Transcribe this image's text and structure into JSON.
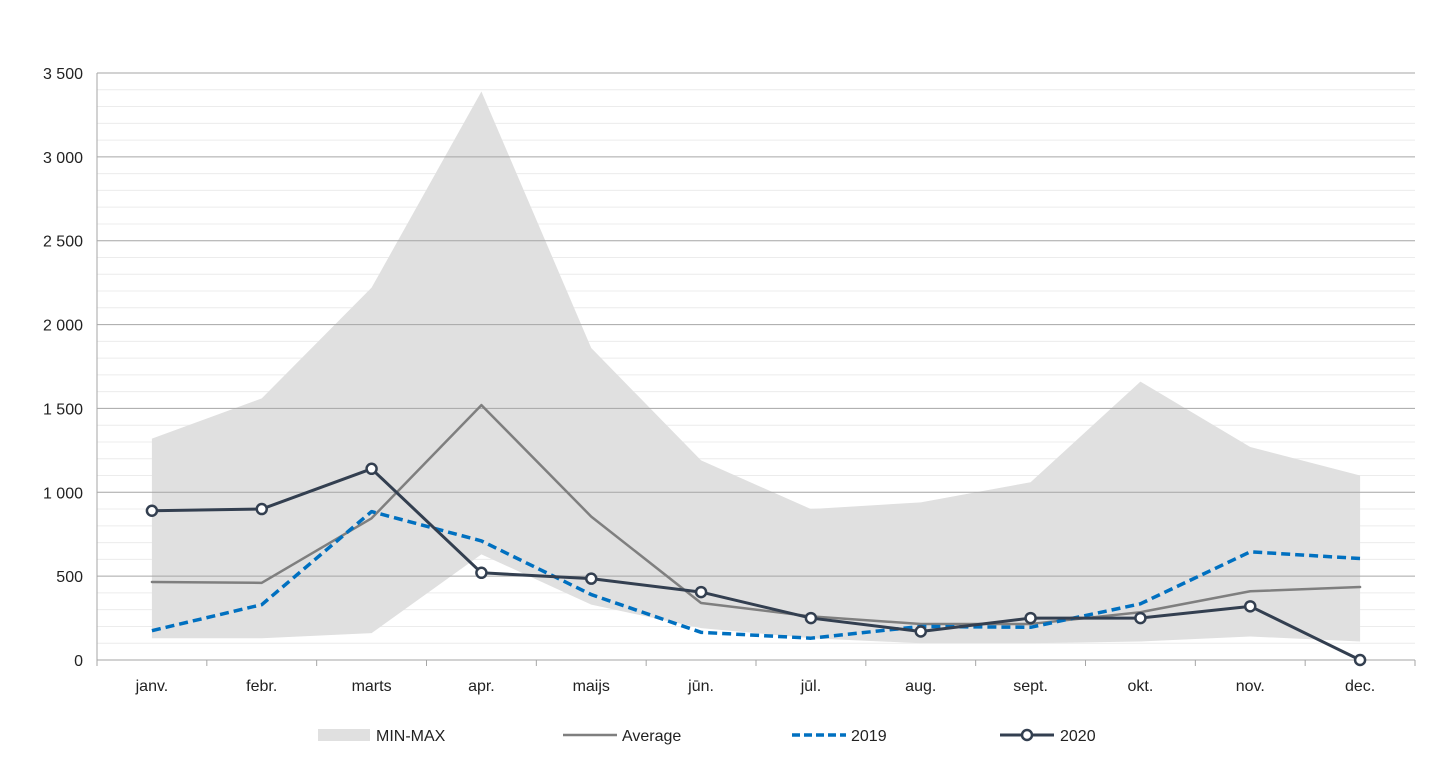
{
  "chart_data": {
    "type": "line",
    "title": "",
    "xlabel": "",
    "ylabel": "",
    "categories": [
      "janv.",
      "febr.",
      "marts",
      "apr.",
      "maijs",
      "jūn.",
      "jūl.",
      "aug.",
      "sept.",
      "okt.",
      "nov.",
      "dec."
    ],
    "ylim": [
      0,
      3500
    ],
    "yticks": [
      0,
      500,
      1000,
      1500,
      2000,
      2500,
      3000,
      3500
    ],
    "ytick_labels": [
      "0",
      "500",
      "1 000",
      "1 500",
      "2 000",
      "2 500",
      "3 000",
      "3 500"
    ],
    "grid": {
      "major": true,
      "minor": true
    },
    "legend_position": "bottom",
    "band": {
      "name": "MIN-MAX",
      "color": "#e0e0e0",
      "min": [
        130,
        130,
        160,
        630,
        330,
        190,
        130,
        100,
        100,
        110,
        140,
        110
      ],
      "max": [
        1320,
        1560,
        2220,
        3390,
        1860,
        1190,
        900,
        940,
        1060,
        1660,
        1270,
        1100
      ]
    },
    "series": [
      {
        "name": "Average",
        "color": "#7f7f7f",
        "style": "solid",
        "marker": false,
        "values": [
          465,
          460,
          845,
          1520,
          855,
          340,
          260,
          215,
          215,
          285,
          410,
          435
        ]
      },
      {
        "name": "2019",
        "color": "#0070c0",
        "style": "dashed",
        "marker": false,
        "values": [
          175,
          330,
          885,
          710,
          390,
          165,
          130,
          200,
          195,
          335,
          645,
          605
        ]
      },
      {
        "name": "2020",
        "color": "#333f50",
        "style": "solid",
        "marker": true,
        "values": [
          890,
          900,
          1140,
          520,
          485,
          405,
          250,
          170,
          250,
          250,
          320,
          0
        ]
      }
    ]
  }
}
